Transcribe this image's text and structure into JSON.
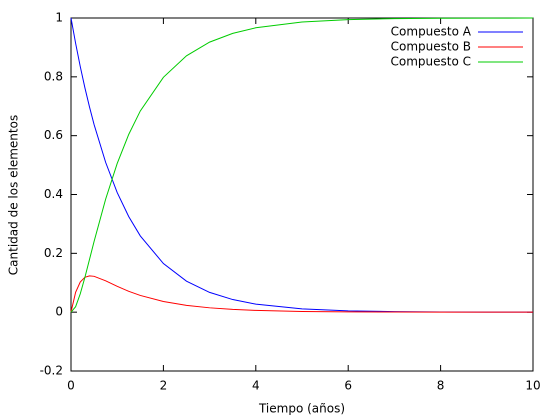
{
  "chart_data": {
    "type": "line",
    "xlabel": "Tiempo (años)",
    "ylabel": "Cantidad de los elementos",
    "x": [
      0,
      0.1,
      0.2,
      0.3,
      0.4,
      0.5,
      0.75,
      1,
      1.25,
      1.5,
      2,
      2.5,
      3,
      3.5,
      4,
      5,
      6,
      7,
      8,
      9,
      10
    ],
    "series": [
      {
        "name": "Compuesto A",
        "color": "#0000ff",
        "values": [
          1,
          0.9139,
          0.8353,
          0.7634,
          0.6977,
          0.6376,
          0.5092,
          0.4066,
          0.3247,
          0.2592,
          0.1653,
          0.1054,
          0.0672,
          0.0429,
          0.0273,
          0.0111,
          0.0045,
          0.0018,
          0.0007,
          0.0003,
          0.0001
        ]
      },
      {
        "name": "Compuesto B",
        "color": "#ff0000",
        "values": [
          0,
          0.0675,
          0.1026,
          0.1186,
          0.1234,
          0.1219,
          0.1066,
          0.0878,
          0.0709,
          0.0568,
          0.0363,
          0.0231,
          0.0148,
          0.0094,
          0.006,
          0.0024,
          0.001,
          0.0004,
          0.0002,
          0.0001,
          0
        ]
      },
      {
        "name": "Compuesto C",
        "color": "#00cc00",
        "values": [
          0,
          0.0186,
          0.0621,
          0.118,
          0.1789,
          0.2405,
          0.3842,
          0.5056,
          0.6044,
          0.684,
          0.7984,
          0.8715,
          0.918,
          0.9477,
          0.9667,
          0.9865,
          0.9945,
          0.9978,
          0.9991,
          0.9996,
          0.9999
        ]
      }
    ],
    "xlim": [
      0,
      10
    ],
    "xticks": [
      0,
      2,
      4,
      6,
      8,
      10
    ],
    "ylim": [
      -0.2,
      1
    ],
    "yticks": [
      -0.2,
      0,
      0.2,
      0.4,
      0.6,
      0.8,
      1
    ],
    "legend": "top-right"
  }
}
